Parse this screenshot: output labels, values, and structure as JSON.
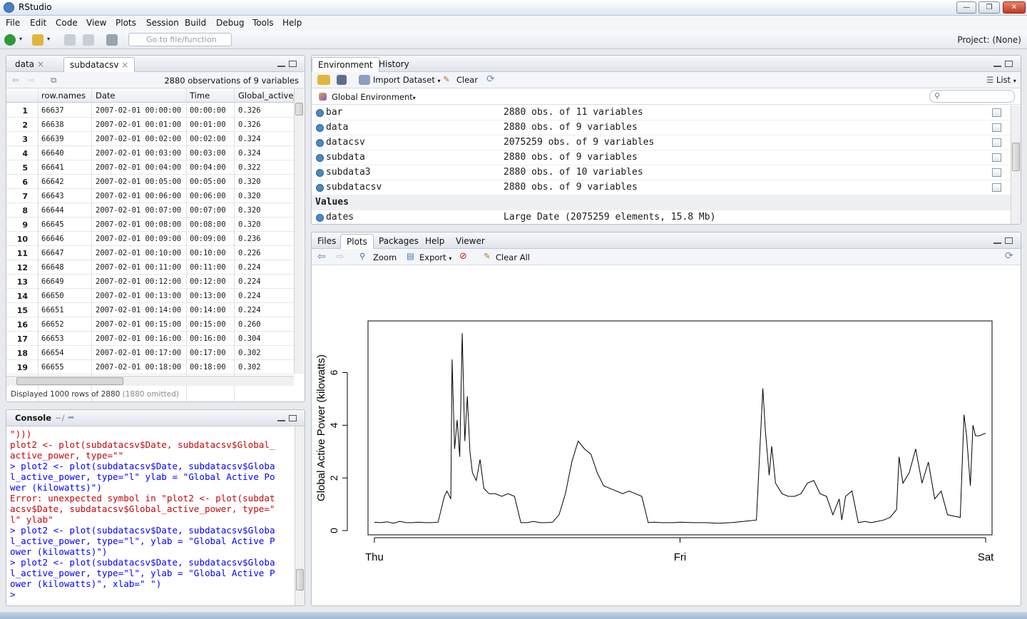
{
  "window": {
    "title": "RStudio"
  },
  "menu": [
    "File",
    "Edit",
    "Code",
    "View",
    "Plots",
    "Session",
    "Build",
    "Debug",
    "Tools",
    "Help"
  ],
  "toolbar": {
    "goto_placeholder": "Go to file/function",
    "project": "Project: (None)"
  },
  "data_pane": {
    "tabs": [
      "data",
      "subdatacsv"
    ],
    "obs_text": "2880 observations of 9 variables",
    "columns": [
      "row.names",
      "Date",
      "Time",
      "Global_active_"
    ],
    "rows": [
      [
        "1",
        "66637",
        "2007-02-01 00:00:00",
        "00:00:00",
        "0.326"
      ],
      [
        "2",
        "66638",
        "2007-02-01 00:01:00",
        "00:01:00",
        "0.326"
      ],
      [
        "3",
        "66639",
        "2007-02-01 00:02:00",
        "00:02:00",
        "0.324"
      ],
      [
        "4",
        "66640",
        "2007-02-01 00:03:00",
        "00:03:00",
        "0.324"
      ],
      [
        "5",
        "66641",
        "2007-02-01 00:04:00",
        "00:04:00",
        "0.322"
      ],
      [
        "6",
        "66642",
        "2007-02-01 00:05:00",
        "00:05:00",
        "0.320"
      ],
      [
        "7",
        "66643",
        "2007-02-01 00:06:00",
        "00:06:00",
        "0.320"
      ],
      [
        "8",
        "66644",
        "2007-02-01 00:07:00",
        "00:07:00",
        "0.320"
      ],
      [
        "9",
        "66645",
        "2007-02-01 00:08:00",
        "00:08:00",
        "0.320"
      ],
      [
        "10",
        "66646",
        "2007-02-01 00:09:00",
        "00:09:00",
        "0.236"
      ],
      [
        "11",
        "66647",
        "2007-02-01 00:10:00",
        "00:10:00",
        "0.226"
      ],
      [
        "12",
        "66648",
        "2007-02-01 00:11:00",
        "00:11:00",
        "0.224"
      ],
      [
        "13",
        "66649",
        "2007-02-01 00:12:00",
        "00:12:00",
        "0.224"
      ],
      [
        "14",
        "66650",
        "2007-02-01 00:13:00",
        "00:13:00",
        "0.224"
      ],
      [
        "15",
        "66651",
        "2007-02-01 00:14:00",
        "00:14:00",
        "0.224"
      ],
      [
        "16",
        "66652",
        "2007-02-01 00:15:00",
        "00:15:00",
        "0.260"
      ],
      [
        "17",
        "66653",
        "2007-02-01 00:16:00",
        "00:16:00",
        "0.304"
      ],
      [
        "18",
        "66654",
        "2007-02-01 00:17:00",
        "00:17:00",
        "0.302"
      ],
      [
        "19",
        "66655",
        "2007-02-01 00:18:00",
        "00:18:00",
        "0.302"
      ]
    ],
    "footer": "Displayed 1000 rows of 2880",
    "footer_omitted": "(1880 omitted)"
  },
  "console": {
    "title": "Console",
    "path": "~/",
    "lines": [
      {
        "type": "err",
        "text": "\")))"
      },
      {
        "type": "err",
        "text": "plot2 <- plot(subdatacsv$Date, subdatacsv$Global_"
      },
      {
        "type": "err",
        "text": "active_power, type=\"\""
      },
      {
        "type": "cmd",
        "text": "> plot2 <- plot(subdatacsv$Date, subdatacsv$Globa"
      },
      {
        "type": "cmd",
        "text": "l_active_power, type=\"l\" ylab = \"Global Active Po"
      },
      {
        "type": "cmd",
        "text": "wer (kilowatts)\")"
      },
      {
        "type": "err",
        "text": "Error: unexpected symbol in \"plot2 <- plot(subdat"
      },
      {
        "type": "err",
        "text": "acsv$Date, subdatacsv$Global_active_power, type=\""
      },
      {
        "type": "err",
        "text": "l\" ylab\""
      },
      {
        "type": "cmd",
        "text": "> plot2 <- plot(subdatacsv$Date, subdatacsv$Globa"
      },
      {
        "type": "cmd",
        "text": "l_active_power, type=\"l\", ylab = \"Global Active P"
      },
      {
        "type": "cmd",
        "text": "ower (kilowatts)\")"
      },
      {
        "type": "cmd",
        "text": "> plot2 <- plot(subdatacsv$Date, subdatacsv$Globa"
      },
      {
        "type": "cmd",
        "text": "l_active_power, type=\"l\", ylab = \"Global Active P"
      },
      {
        "type": "cmd",
        "text": "ower (kilowatts)\", xlab=\" \")"
      },
      {
        "type": "cmd",
        "text": "> "
      }
    ]
  },
  "env_pane": {
    "tabs": [
      "Environment",
      "History"
    ],
    "import_label": "Import Dataset",
    "clear_label": "Clear",
    "list_label": "List",
    "scope": "Global Environment",
    "data": [
      {
        "name": "bar",
        "value": "2880 obs. of 11 variables"
      },
      {
        "name": "data",
        "value": "2880 obs. of 9 variables"
      },
      {
        "name": "datacsv",
        "value": "2075259 obs. of 9 variables"
      },
      {
        "name": "subdata",
        "value": "2880 obs. of 9 variables"
      },
      {
        "name": "subdata3",
        "value": "2880 obs. of 10 variables"
      },
      {
        "name": "subdatacsv",
        "value": "2880 obs. of 9 variables"
      }
    ],
    "values_header": "Values",
    "values": [
      {
        "name": "dates",
        "value": "Large Date (2075259 elements, 15.8 Mb)"
      }
    ]
  },
  "plots_pane": {
    "tabs": [
      "Files",
      "Plots",
      "Packages",
      "Help",
      "Viewer"
    ],
    "zoom_label": "Zoom",
    "export_label": "Export",
    "clear_all_label": "Clear All"
  },
  "chart_data": {
    "type": "line",
    "title": "",
    "xlabel": "",
    "ylabel": "Global Active Power (kilowatts)",
    "x_tick_labels": [
      "Thu",
      "Fri",
      "Sat"
    ],
    "x_tick_positions_hours": [
      0,
      24,
      48
    ],
    "y_ticks": [
      0,
      2,
      4,
      6
    ],
    "ylim": [
      0,
      7.8
    ],
    "xlim_hours": [
      -0.5,
      48.5
    ],
    "line_color": "#000000",
    "x_hours": [
      0,
      0.5,
      1,
      1.5,
      2,
      2.5,
      3,
      3.5,
      4,
      4.5,
      5,
      5.5,
      5.7,
      6,
      6.1,
      6.3,
      6.5,
      6.7,
      6.9,
      7.1,
      7.3,
      7.5,
      7.7,
      8,
      8.3,
      8.6,
      9,
      9.5,
      10,
      10.5,
      11,
      11.5,
      12,
      12.5,
      13,
      13.5,
      14,
      14.5,
      15,
      15.5,
      16,
      16.5,
      17,
      17.5,
      18,
      18.5,
      19,
      19.5,
      20,
      20.5,
      21,
      21.5,
      22,
      22.5,
      23,
      23.5,
      24,
      25,
      26,
      27,
      28,
      29,
      30,
      30.5,
      30.7,
      31,
      31.2,
      31.5,
      32,
      32.5,
      33,
      33.5,
      34,
      34.5,
      35,
      35.5,
      36,
      36.5,
      36.7,
      37,
      37.5,
      38,
      38.5,
      39,
      39.5,
      40,
      40.5,
      41,
      41.2,
      41.5,
      42,
      42.5,
      43,
      43.5,
      44,
      44.5,
      45,
      45.5,
      46,
      46.3,
      46.5,
      46.8,
      47,
      47.2,
      47.5,
      48
    ],
    "y_values": [
      0.32,
      0.3,
      0.33,
      0.28,
      0.35,
      0.3,
      0.3,
      0.32,
      0.3,
      0.3,
      0.32,
      1.3,
      1.5,
      1.2,
      6.5,
      3.1,
      4.2,
      2.8,
      7.5,
      3.4,
      5.1,
      3.0,
      2.2,
      1.9,
      2.7,
      1.6,
      1.4,
      1.4,
      1.3,
      1.4,
      1.3,
      0.3,
      0.3,
      0.35,
      0.3,
      0.3,
      0.32,
      0.6,
      1.4,
      2.6,
      3.4,
      3.1,
      2.9,
      2.2,
      1.7,
      1.6,
      1.5,
      1.4,
      1.5,
      1.4,
      1.3,
      0.3,
      0.32,
      0.3,
      0.3,
      0.3,
      0.32,
      0.3,
      0.3,
      0.28,
      0.3,
      0.35,
      0.4,
      5.4,
      3.8,
      2.1,
      3.2,
      1.8,
      1.4,
      1.3,
      1.3,
      1.4,
      1.8,
      1.9,
      1.4,
      1.3,
      0.6,
      1.2,
      0.4,
      1.3,
      1.5,
      0.3,
      0.35,
      0.3,
      0.35,
      0.4,
      0.5,
      0.8,
      2.8,
      1.8,
      2.2,
      3.1,
      1.8,
      2.6,
      1.2,
      1.5,
      0.6,
      0.55,
      0.5,
      4.4,
      3.6,
      1.7,
      4.0,
      3.6,
      3.6,
      3.7
    ]
  }
}
